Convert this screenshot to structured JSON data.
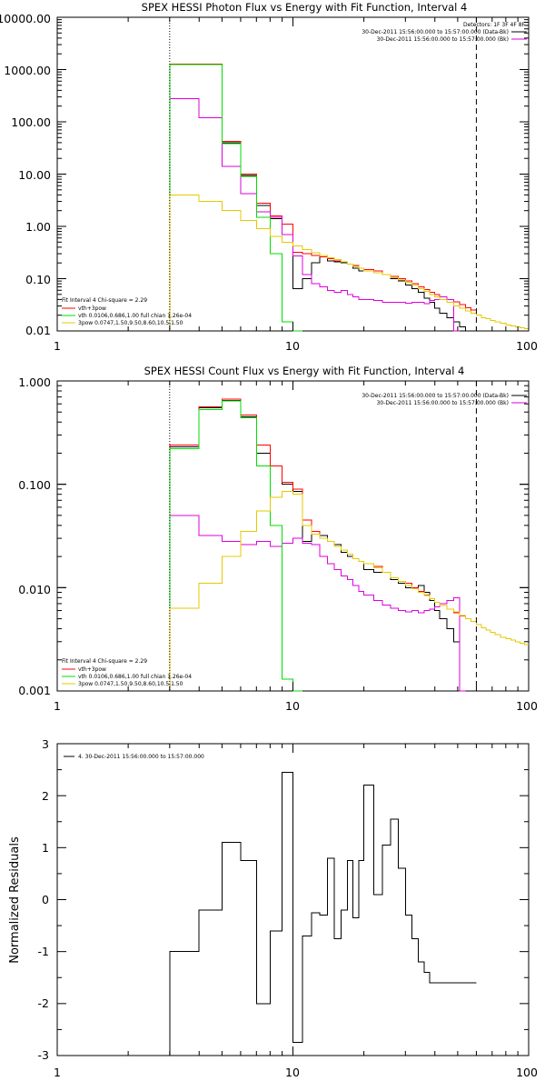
{
  "colors": {
    "black": "#000000",
    "red": "#ff0000",
    "green": "#00dd00",
    "magenta": "#dd00dd",
    "yellow": "#e6c800"
  },
  "chart_data": [
    {
      "type": "line",
      "title": "SPEX HESSI Photon Flux vs Energy with Fit Function, Interval 4",
      "xscale": "log",
      "yscale": "log",
      "xlim": [
        1,
        100
      ],
      "ylim": [
        0.01,
        10000
      ],
      "xticks": [
        "1",
        "10",
        "100"
      ],
      "yticks": [
        "10000.00",
        "1000.00",
        "100.00",
        "10.00",
        "1.00",
        "0.10",
        "0.01"
      ],
      "vlines": [
        3,
        60
      ],
      "legend_top_right": [
        "Detectors: 1F 3F 4F 8F",
        "30-Dec-2011 15:56:00.000 to 15:57:00.000 (Data-Bk)",
        "30-Dec-2011 15:56:00.000 to 15:57:00.000 (Bk)"
      ],
      "legend_bottom_left": [
        "Fit Interval  4    Chi-square = 2.29",
        "vth+3pow",
        "vth 0.0106,0.686,1.00   full chian 1.26e-04",
        "3pow 0.0747,1.50,9.50,8.60,10.5,1.50"
      ],
      "edges": [
        3,
        4,
        5,
        6,
        7,
        8,
        9,
        10,
        11,
        12,
        13,
        14,
        15,
        16,
        17,
        18,
        19,
        20,
        22,
        24,
        26,
        28,
        30,
        32,
        34,
        36,
        38,
        40,
        42,
        45,
        48,
        51,
        54,
        57,
        60,
        63,
        66,
        69,
        72,
        76,
        80,
        84,
        88,
        92,
        96,
        100
      ],
      "series": [
        {
          "name": "30-Dec-2011 15:56:00.000 to 15:57:00.000 (Data-Bk)",
          "color": "black",
          "values": [
            1250,
            1250,
            40,
            9.5,
            2.5,
            1.4,
            1.1,
            0.065,
            0.1,
            0.2,
            0.26,
            0.22,
            0.21,
            0.2,
            0.19,
            0.16,
            0.14,
            0.14,
            0.13,
            0.12,
            0.1,
            0.09,
            0.075,
            0.065,
            0.055,
            0.042,
            0.035,
            0.027,
            0.022,
            0.018,
            0.015,
            0.012,
            0.01,
            0.01
          ]
        },
        {
          "name": "vth+3pow",
          "color": "red",
          "values": [
            1280,
            1280,
            42,
            10,
            2.8,
            1.6,
            1.1,
            0.32,
            0.3,
            0.28,
            0.26,
            0.24,
            0.22,
            0.21,
            0.19,
            0.18,
            0.16,
            0.15,
            0.14,
            0.12,
            0.11,
            0.1,
            0.09,
            0.08,
            0.07,
            0.062,
            0.055,
            0.05,
            0.045,
            0.04,
            0.036,
            0.032,
            0.028,
            0.025
          ]
        },
        {
          "name": "30-Dec-2011 15:56:00.000 to 15:57:00.000 (Bk)",
          "color": "magenta",
          "values": [
            280,
            120,
            14,
            4.2,
            1.9,
            1.5,
            0.7,
            0.27,
            0.12,
            0.08,
            0.07,
            0.06,
            0.055,
            0.06,
            0.05,
            0.045,
            0.04,
            0.04,
            0.038,
            0.035,
            0.035,
            0.035,
            0.034,
            0.035,
            0.035,
            0.033,
            0.038,
            0.04,
            0.045,
            0.04,
            0.001
          ]
        },
        {
          "name": "vth",
          "color": "green",
          "values": [
            1250,
            1250,
            38,
            9,
            1.5,
            0.3,
            0.015,
            0.001
          ]
        },
        {
          "name": "3pow",
          "color": "yellow",
          "values": [
            4,
            3,
            2,
            1.3,
            0.9,
            0.65,
            0.5,
            0.42,
            0.36,
            0.31,
            0.28,
            0.25,
            0.23,
            0.21,
            0.19,
            0.17,
            0.16,
            0.14,
            0.13,
            0.12,
            0.105,
            0.095,
            0.085,
            0.075,
            0.065,
            0.057,
            0.05,
            0.045,
            0.04,
            0.035,
            0.03,
            0.027,
            0.024,
            0.022,
            0.02,
            0.018,
            0.017,
            0.016,
            0.015,
            0.014,
            0.013,
            0.0125,
            0.012,
            0.0115,
            0.011
          ]
        }
      ]
    },
    {
      "type": "line",
      "title": "SPEX HESSI Count Flux vs Energy with Fit Function, Interval 4",
      "xscale": "log",
      "yscale": "log",
      "xlim": [
        1,
        100
      ],
      "ylim": [
        0.001,
        1
      ],
      "xticks": [
        "1",
        "10",
        "100"
      ],
      "yticks": [
        "1.000",
        "0.100",
        "0.010",
        "0.001"
      ],
      "vlines": [
        3,
        60
      ],
      "legend_top_right": [
        "30-Dec-2011 15:56:00.000 to 15:57:00.000 (Data-Bk)",
        "30-Dec-2011 15:56:00.000 to 15:57:00.000 (Bk)"
      ],
      "legend_bottom_left": [
        "Fit Interval  4    Chi-square = 2.29",
        "vth+3pow",
        "vth 0.0106,0.686,1.00   full chian 1.26e-04",
        "3pow 0.0747,1.50,9.50,8.60,10.5,1.50"
      ],
      "edges": [
        3,
        4,
        5,
        6,
        7,
        8,
        9,
        10,
        11,
        12,
        13,
        14,
        15,
        16,
        17,
        18,
        19,
        20,
        22,
        24,
        26,
        28,
        30,
        32,
        34,
        36,
        38,
        40,
        42,
        45,
        48,
        51,
        54,
        57,
        60,
        63,
        66,
        69,
        72,
        76,
        80,
        84,
        88,
        92,
        96,
        100
      ],
      "series": [
        {
          "name": "30-Dec-2011 15:56:00.000 to 15:57:00.000 (Data-Bk)",
          "color": "black",
          "values": [
            0.23,
            0.55,
            0.65,
            0.45,
            0.2,
            0.15,
            0.1,
            0.085,
            0.028,
            0.033,
            0.032,
            0.028,
            0.026,
            0.022,
            0.02,
            0.019,
            0.018,
            0.015,
            0.014,
            0.014,
            0.012,
            0.011,
            0.01,
            0.01,
            0.0105,
            0.009,
            0.0075,
            0.006,
            0.005,
            0.004,
            0.003,
            0.001
          ]
        },
        {
          "name": "vth+3pow",
          "color": "red",
          "values": [
            0.24,
            0.56,
            0.67,
            0.47,
            0.24,
            0.15,
            0.105,
            0.09,
            0.045,
            0.035,
            0.03,
            0.028,
            0.025,
            0.023,
            0.021,
            0.019,
            0.018,
            0.017,
            0.016,
            0.014,
            0.0125,
            0.0115,
            0.011,
            0.01,
            0.0092,
            0.0085,
            0.0078,
            0.0072,
            0.0067,
            0.0062,
            0.0057,
            0.0053
          ]
        },
        {
          "name": "30-Dec-2011 15:56:00.000 to 15:57:00.000 (Bk)",
          "color": "magenta",
          "values": [
            0.05,
            0.032,
            0.028,
            0.026,
            0.028,
            0.025,
            0.027,
            0.03,
            0.027,
            0.026,
            0.02,
            0.017,
            0.015,
            0.013,
            0.012,
            0.0105,
            0.0092,
            0.0085,
            0.0075,
            0.0068,
            0.0063,
            0.006,
            0.0058,
            0.006,
            0.0057,
            0.006,
            0.0062,
            0.0065,
            0.007,
            0.0075,
            0.008,
            0.001
          ]
        },
        {
          "name": "vth",
          "color": "green",
          "values": [
            0.22,
            0.53,
            0.64,
            0.44,
            0.15,
            0.04,
            0.0013,
            0.001
          ]
        },
        {
          "name": "3pow",
          "color": "yellow",
          "values": [
            0.0063,
            0.011,
            0.02,
            0.035,
            0.055,
            0.075,
            0.085,
            0.08,
            0.04,
            0.033,
            0.03,
            0.028,
            0.025,
            0.023,
            0.021,
            0.019,
            0.018,
            0.017,
            0.0155,
            0.014,
            0.0125,
            0.0115,
            0.0105,
            0.0098,
            0.009,
            0.0084,
            0.0078,
            0.0072,
            0.0067,
            0.0062,
            0.0058,
            0.0054,
            0.005,
            0.0047,
            0.0044,
            0.0041,
            0.0039,
            0.0037,
            0.0035,
            0.0033,
            0.0032,
            0.0031,
            0.003,
            0.0029,
            0.0028
          ]
        }
      ]
    },
    {
      "type": "line",
      "title": "",
      "ylabel": "Normalized Residuals",
      "xscale": "log",
      "yscale": "linear",
      "xlim": [
        1,
        100
      ],
      "ylim": [
        -3,
        3
      ],
      "xticks": [
        "1",
        "10",
        "100"
      ],
      "yticks": [
        "3",
        "2",
        "1",
        "0",
        "-1",
        "-2",
        "-3"
      ],
      "legend_top_left": [
        "4. 30-Dec-2011 15:56:00.000 to 15:57:00.000"
      ],
      "edges": [
        3,
        3.5,
        4,
        4.5,
        5,
        5.5,
        6,
        6.5,
        7,
        7.5,
        8,
        8.5,
        9,
        9.5,
        10,
        10.5,
        11,
        11.5,
        12,
        13,
        14,
        15,
        16,
        17,
        18,
        19,
        20,
        22,
        24,
        26,
        28,
        30,
        32,
        34,
        36,
        38,
        40,
        42,
        45,
        48,
        51,
        54,
        57,
        60
      ],
      "series": [
        {
          "name": "4. 30-Dec-2011 15:56:00.000 to 15:57:00.000",
          "color": "black",
          "values": [
            -1.0,
            -1.0,
            -0.2,
            -0.2,
            1.1,
            1.1,
            0.75,
            0.75,
            -2.0,
            -2.0,
            -0.6,
            -0.6,
            2.45,
            2.45,
            -2.75,
            -2.75,
            -0.7,
            -0.7,
            -0.25,
            -0.3,
            0.8,
            -0.75,
            -0.2,
            0.75,
            -0.35,
            0.75,
            2.2,
            0.1,
            1.05,
            1.55,
            0.6,
            -0.3,
            -0.75,
            -1.2,
            -1.4,
            -1.6,
            -1.6,
            -1.6,
            -1.6,
            -1.6,
            -1.6,
            -1.6,
            -1.6
          ]
        }
      ]
    }
  ]
}
